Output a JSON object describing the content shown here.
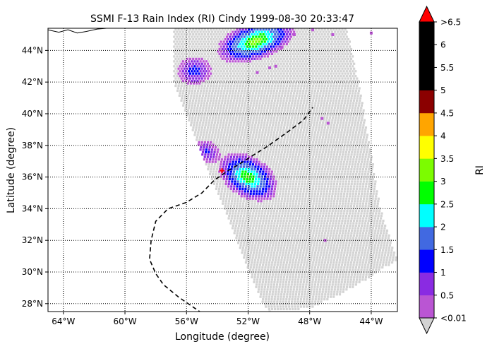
{
  "chart_data": {
    "type": "scatter",
    "title": "SSMI F-13 Rain Index (RI) Cindy 1999-08-30 20:33:47",
    "xlabel": "Longitude (degree)",
    "ylabel": "Latitude (degree)",
    "xlim": [
      -65.0,
      -42.3
    ],
    "ylim": [
      27.5,
      45.4
    ],
    "grid": true,
    "x_ticks": [
      {
        "value": -64,
        "label": "64°W"
      },
      {
        "value": -60,
        "label": "60°W"
      },
      {
        "value": -56,
        "label": "56°W"
      },
      {
        "value": -52,
        "label": "52°W"
      },
      {
        "value": -48,
        "label": "48°W"
      },
      {
        "value": -44,
        "label": "44°W"
      }
    ],
    "y_ticks": [
      {
        "value": 28,
        "label": "28°N"
      },
      {
        "value": 30,
        "label": "30°N"
      },
      {
        "value": 32,
        "label": "32°N"
      },
      {
        "value": 34,
        "label": "34°N"
      },
      {
        "value": 36,
        "label": "36°N"
      },
      {
        "value": 38,
        "label": "38°N"
      },
      {
        "value": 40,
        "label": "40°N"
      },
      {
        "value": 42,
        "label": "42°N"
      },
      {
        "value": 44,
        "label": "44°N"
      }
    ],
    "colorbar": {
      "label": "RI",
      "bounds": [
        0.01,
        0.5,
        1,
        1.5,
        2,
        2.5,
        3,
        3.5,
        4,
        4.5,
        5,
        5.5,
        6,
        6.5
      ],
      "tick_labels": [
        "<0.01",
        "0.5",
        "1",
        "1.5",
        "2",
        "2.5",
        "3",
        "3.5",
        "4",
        "4.5",
        "5",
        "5.5",
        "6",
        ">6.5"
      ],
      "colors": [
        "#ba55d3",
        "#8a2be2",
        "#0000ff",
        "#4169e1",
        "#00ffff",
        "#00ff00",
        "#7cfc00",
        "#ffff00",
        "#ffa500",
        "#8b0000",
        "#000000",
        "#000000",
        "#000000"
      ],
      "under_color": "#d3d3d3",
      "over_color": "#ff0000",
      "extend": "both"
    },
    "swath": {
      "edge_west": [
        [
          -56.8,
          42.0
        ],
        [
          -56.0,
          40.0
        ],
        [
          -55.2,
          38.0
        ],
        [
          -54.4,
          36.0
        ],
        [
          -53.5,
          34.0
        ],
        [
          -52.7,
          32.0
        ],
        [
          -51.9,
          30.0
        ],
        [
          -51.0,
          28.0
        ],
        [
          -50.6,
          27.5
        ]
      ],
      "edge_east": [
        [
          -45.6,
          45.4
        ],
        [
          -44.8,
          42.0
        ],
        [
          -44.1,
          38.0
        ],
        [
          -43.4,
          34.0
        ],
        [
          -42.3,
          30.8
        ]
      ],
      "south_edge": [
        [
          -50.6,
          27.5
        ],
        [
          -48.0,
          27.7
        ],
        [
          -46.0,
          28.6
        ],
        [
          -44.0,
          29.7
        ],
        [
          -42.3,
          30.8
        ]
      ],
      "north_lat": 45.4
    },
    "rain_cells": [
      {
        "cx": -51.5,
        "cy": 44.6,
        "rx": 2.6,
        "ry": 1.2,
        "peak": 3.4,
        "rot": 18
      },
      {
        "cx": -55.5,
        "cy": 42.7,
        "rx": 1.1,
        "ry": 0.9,
        "peak": 1.3,
        "rot": 0
      },
      {
        "cx": -52.0,
        "cy": 36.0,
        "rx": 2.1,
        "ry": 1.3,
        "peak": 3.1,
        "rot": -30
      },
      {
        "cx": -54.6,
        "cy": 37.6,
        "rx": 0.9,
        "ry": 0.6,
        "peak": 1.1,
        "rot": -40
      }
    ],
    "sparse_cells": [
      [
        -47.8,
        45.3,
        0.3
      ],
      [
        -46.5,
        45.0,
        0.3
      ],
      [
        -44.0,
        45.1,
        0.3
      ],
      [
        -49.0,
        45.0,
        0.3
      ],
      [
        -47.2,
        39.7,
        0.3
      ],
      [
        -46.8,
        39.4,
        0.3
      ],
      [
        -47.0,
        32.0,
        0.3
      ],
      [
        -50.2,
        43.0,
        0.3
      ],
      [
        -50.6,
        42.9,
        0.3
      ],
      [
        -49.8,
        44.2,
        0.3
      ],
      [
        -51.4,
        42.6,
        0.3
      ]
    ],
    "track": [
      [
        -55.0,
        27.4
      ],
      [
        -56.5,
        28.4
      ],
      [
        -57.5,
        29.2
      ],
      [
        -58.0,
        29.9
      ],
      [
        -58.4,
        30.8
      ],
      [
        -58.3,
        32.0
      ],
      [
        -58.0,
        33.2
      ],
      [
        -57.2,
        34.0
      ],
      [
        -56.0,
        34.4
      ],
      [
        -55.0,
        35.0
      ],
      [
        -54.2,
        35.8
      ],
      [
        -53.3,
        36.4
      ],
      [
        -52.6,
        36.8
      ],
      [
        -51.8,
        37.3
      ],
      [
        -50.8,
        37.9
      ],
      [
        -49.5,
        38.8
      ],
      [
        -48.4,
        39.6
      ],
      [
        -47.8,
        40.4
      ]
    ],
    "storm_center": [
      -53.7,
      36.4
    ],
    "coastline": [
      [
        -65.0,
        45.3
      ],
      [
        -64.3,
        45.15
      ],
      [
        -63.7,
        45.3
      ],
      [
        -63.1,
        45.1
      ],
      [
        -62.5,
        45.2
      ],
      [
        -61.8,
        45.35
      ],
      [
        -61.2,
        45.4
      ]
    ]
  }
}
